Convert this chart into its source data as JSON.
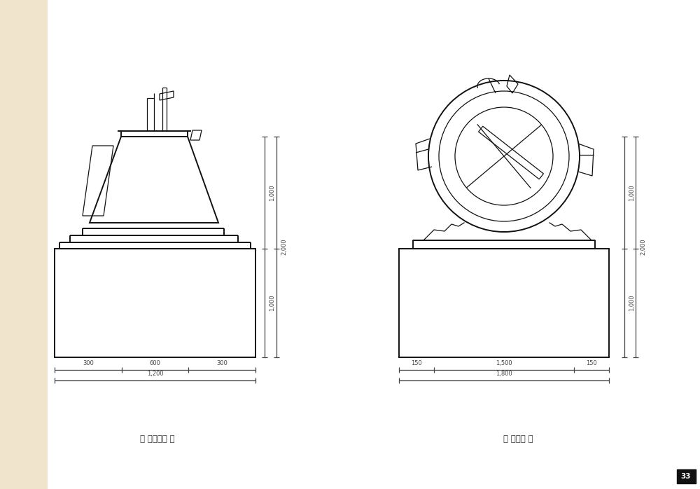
{
  "bg_color": "#ffffff",
  "left_bg": "#f5ede0",
  "line_color": "#111111",
  "dim_color": "#444444",
  "lw": 1.4,
  "lw_thin": 0.9,
  "left_label": "》 좌측견도 《",
  "right_label": "》 내견도 《",
  "page_num": "33"
}
